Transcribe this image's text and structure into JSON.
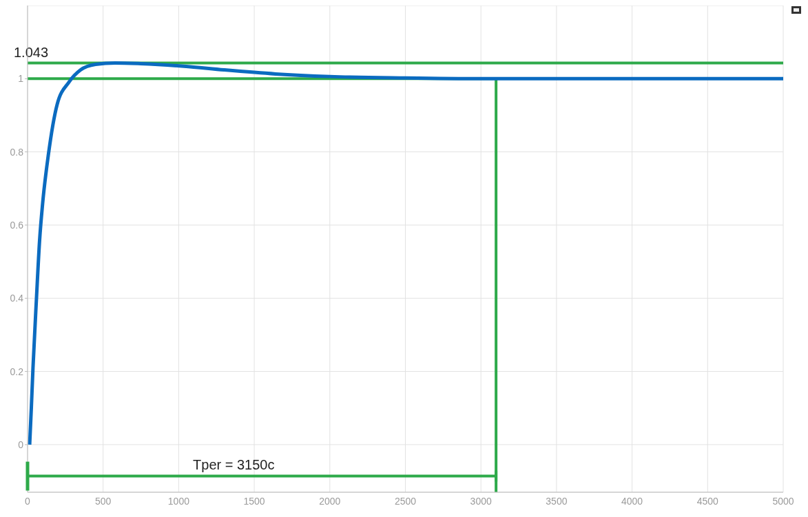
{
  "chart_data": {
    "type": "line",
    "x": [
      14,
      25,
      36,
      59,
      80,
      100,
      137,
      196,
      273,
      351,
      450,
      580,
      750,
      1035,
      1300,
      1641,
      2000,
      2500,
      3000,
      4000,
      5000
    ],
    "series": [
      {
        "color": "#0b6bc0",
        "values": [
          0,
          0.1,
          0.21,
          0.4,
          0.56,
          0.66,
          0.79,
          0.93,
          0.99,
          1.024,
          1.039,
          1.043,
          1.041,
          1.034,
          1.024,
          1.013,
          1.006,
          1.002,
          1.0,
          1.0,
          1.0
        ]
      }
    ],
    "xlim": [
      0,
      5000
    ],
    "xticks": [
      0,
      500,
      1000,
      1500,
      2000,
      2500,
      3000,
      3500,
      4000,
      4500,
      5000
    ],
    "ylim": [
      -0.13,
      1.2
    ],
    "yticks": [
      0,
      0.2,
      0.4,
      0.6,
      0.8,
      1
    ],
    "grid": true,
    "legend": false,
    "marker": "none",
    "line_style": "solid",
    "ref_lines": [
      {
        "axis": "y",
        "value": 1.043,
        "label": "1.043",
        "color": "#2eaa4a"
      },
      {
        "axis": "y",
        "value": 1,
        "color": "#2eaa4a"
      },
      {
        "axis": "y",
        "value": -0.086,
        "color": "#2eaa4a"
      },
      {
        "axis": "x",
        "value": 3100,
        "color": "#2eaa4a"
      }
    ],
    "annotations": [
      "Tper = 3150c"
    ]
  }
}
